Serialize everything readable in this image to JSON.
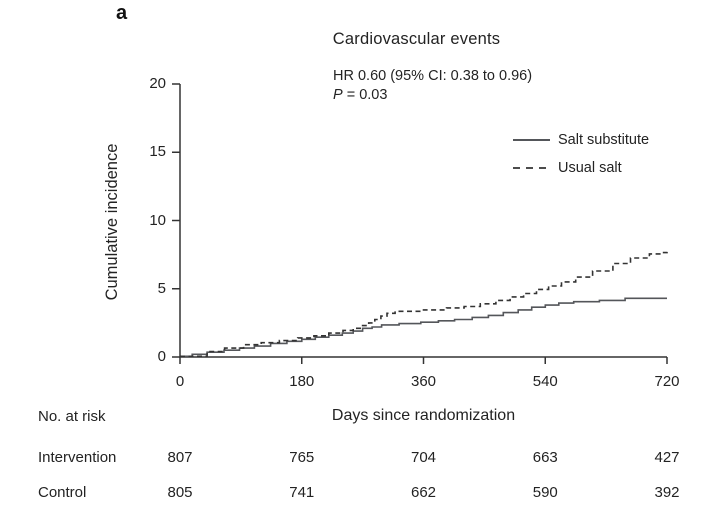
{
  "panel_label": "a",
  "annotation": {
    "hr_line": "HR 0.60 (95% CI: 0.38 to 0.96)",
    "p_italic": "P",
    "p_rest": " = 0.03"
  },
  "risk_table": {
    "header": "No. at risk",
    "rows": [
      {
        "label": "Intervention",
        "values": [
          "807",
          "765",
          "704",
          "663",
          "427"
        ]
      },
      {
        "label": "Control",
        "values": [
          "805",
          "741",
          "662",
          "590",
          "392"
        ]
      }
    ]
  },
  "colors": {
    "background": "#ffffff",
    "text": "#232323",
    "axis": "#333333",
    "solid_line": "#54565a",
    "dashed_line": "#333333"
  },
  "chart_data": {
    "type": "line",
    "step": true,
    "title": "Cardiovascular events",
    "xlabel": "Days since randomization",
    "ylabel": "Cumulative incidence",
    "xlim": [
      0,
      720
    ],
    "ylim": [
      0,
      20
    ],
    "x_ticks": [
      "0",
      "180",
      "360",
      "540",
      "720"
    ],
    "x_tick_values": [
      0,
      180,
      360,
      540,
      720
    ],
    "y_ticks": [
      "0",
      "5",
      "10",
      "15",
      "20"
    ],
    "y_tick_values": [
      0,
      5,
      10,
      15,
      20
    ],
    "grid": false,
    "legend_position": "upper right",
    "annotations": [
      "HR 0.60 (95% CI: 0.38 to 0.96)",
      "P = 0.03"
    ],
    "series": [
      {
        "name": "Salt substitute",
        "line_style": "solid",
        "points": [
          [
            0,
            0.05
          ],
          [
            18,
            0.2
          ],
          [
            40,
            0.35
          ],
          [
            65,
            0.5
          ],
          [
            88,
            0.65
          ],
          [
            110,
            0.8
          ],
          [
            134,
            1.0
          ],
          [
            158,
            1.15
          ],
          [
            180,
            1.3
          ],
          [
            200,
            1.45
          ],
          [
            220,
            1.6
          ],
          [
            240,
            1.75
          ],
          [
            256,
            1.9
          ],
          [
            270,
            2.1
          ],
          [
            284,
            2.2
          ],
          [
            298,
            2.35
          ],
          [
            324,
            2.45
          ],
          [
            356,
            2.55
          ],
          [
            382,
            2.65
          ],
          [
            406,
            2.75
          ],
          [
            432,
            2.9
          ],
          [
            456,
            3.05
          ],
          [
            478,
            3.25
          ],
          [
            500,
            3.45
          ],
          [
            520,
            3.65
          ],
          [
            540,
            3.8
          ],
          [
            560,
            3.95
          ],
          [
            582,
            4.05
          ],
          [
            620,
            4.15
          ],
          [
            658,
            4.3
          ],
          [
            720,
            4.3
          ]
        ]
      },
      {
        "name": "Usual salt",
        "line_style": "dashed",
        "points": [
          [
            0,
            0.05
          ],
          [
            40,
            0.4
          ],
          [
            66,
            0.65
          ],
          [
            94,
            0.9
          ],
          [
            120,
            1.05
          ],
          [
            147,
            1.2
          ],
          [
            174,
            1.4
          ],
          [
            198,
            1.55
          ],
          [
            220,
            1.75
          ],
          [
            241,
            1.95
          ],
          [
            256,
            2.1
          ],
          [
            268,
            2.3
          ],
          [
            279,
            2.5
          ],
          [
            288,
            2.75
          ],
          [
            297,
            3.0
          ],
          [
            306,
            3.2
          ],
          [
            318,
            3.35
          ],
          [
            360,
            3.45
          ],
          [
            394,
            3.6
          ],
          [
            420,
            3.7
          ],
          [
            444,
            3.9
          ],
          [
            467,
            4.15
          ],
          [
            488,
            4.4
          ],
          [
            508,
            4.65
          ],
          [
            527,
            4.95
          ],
          [
            545,
            5.2
          ],
          [
            564,
            5.5
          ],
          [
            585,
            5.85
          ],
          [
            610,
            6.3
          ],
          [
            640,
            6.85
          ],
          [
            666,
            7.25
          ],
          [
            694,
            7.55
          ],
          [
            712,
            7.65
          ],
          [
            720,
            7.7
          ]
        ]
      }
    ]
  }
}
